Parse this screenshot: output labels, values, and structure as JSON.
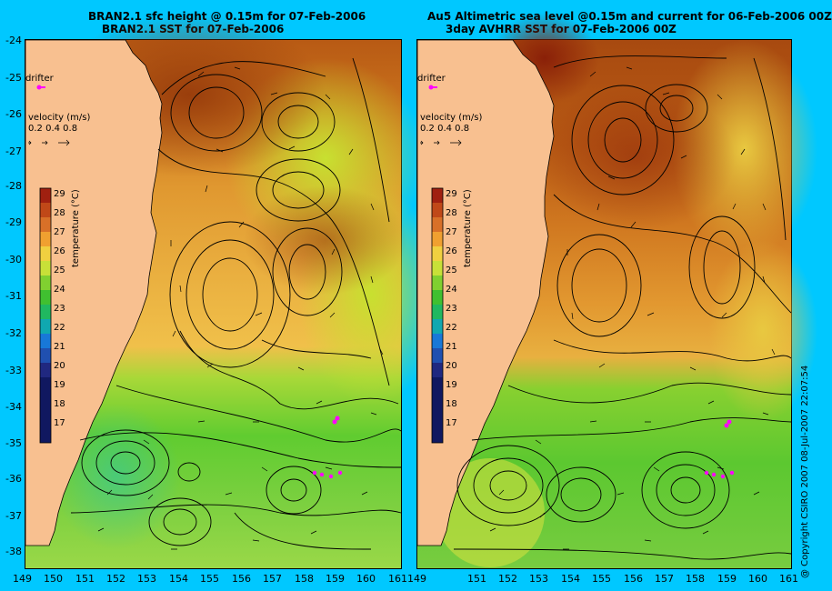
{
  "left": {
    "title1": "BRAN2.1 sfc height @ 0.15m for 07-Feb-2006",
    "title2": "BRAN2.1 SST for 07-Feb-2006"
  },
  "right": {
    "title1": "Au5 Altimetric sea level  @0.15m and current for 06-Feb-2006 00Z",
    "title2": "3day AVHRR SST for 07-Feb-2006 00Z"
  },
  "y_ticks": [
    "-24",
    "-25",
    "-26",
    "-27",
    "-28",
    "-29",
    "-30",
    "-31",
    "-32",
    "-33",
    "-34",
    "-35",
    "-36",
    "-37",
    "-38"
  ],
  "left_x_ticks": [
    "149",
    "150",
    "151",
    "152",
    "153",
    "154",
    "155",
    "156",
    "157",
    "158",
    "159",
    "160",
    "161"
  ],
  "right_x_ticks": [
    "151",
    "152",
    "153",
    "154",
    "155",
    "156",
    "157",
    "158",
    "159",
    "160",
    "161"
  ],
  "shared_x_tick": "161149",
  "legend": {
    "drifter": "drifter",
    "velocity_title": "velocity (m/s)",
    "velocity_values": "0.2 0.4 0.8",
    "colorbar_title": "temperature (°C)",
    "colorbar_ticks": [
      "29",
      "28",
      "27",
      "26",
      "25",
      "24",
      "23",
      "22",
      "21",
      "20",
      "19",
      "18",
      "17"
    ]
  },
  "copyright": "@ Copyright CSIRO 2007  08-Jul-2007 22:07:54",
  "colors": {
    "background": "#00c8ff",
    "land": "#f8c090",
    "drifter": "#ff00ff"
  }
}
